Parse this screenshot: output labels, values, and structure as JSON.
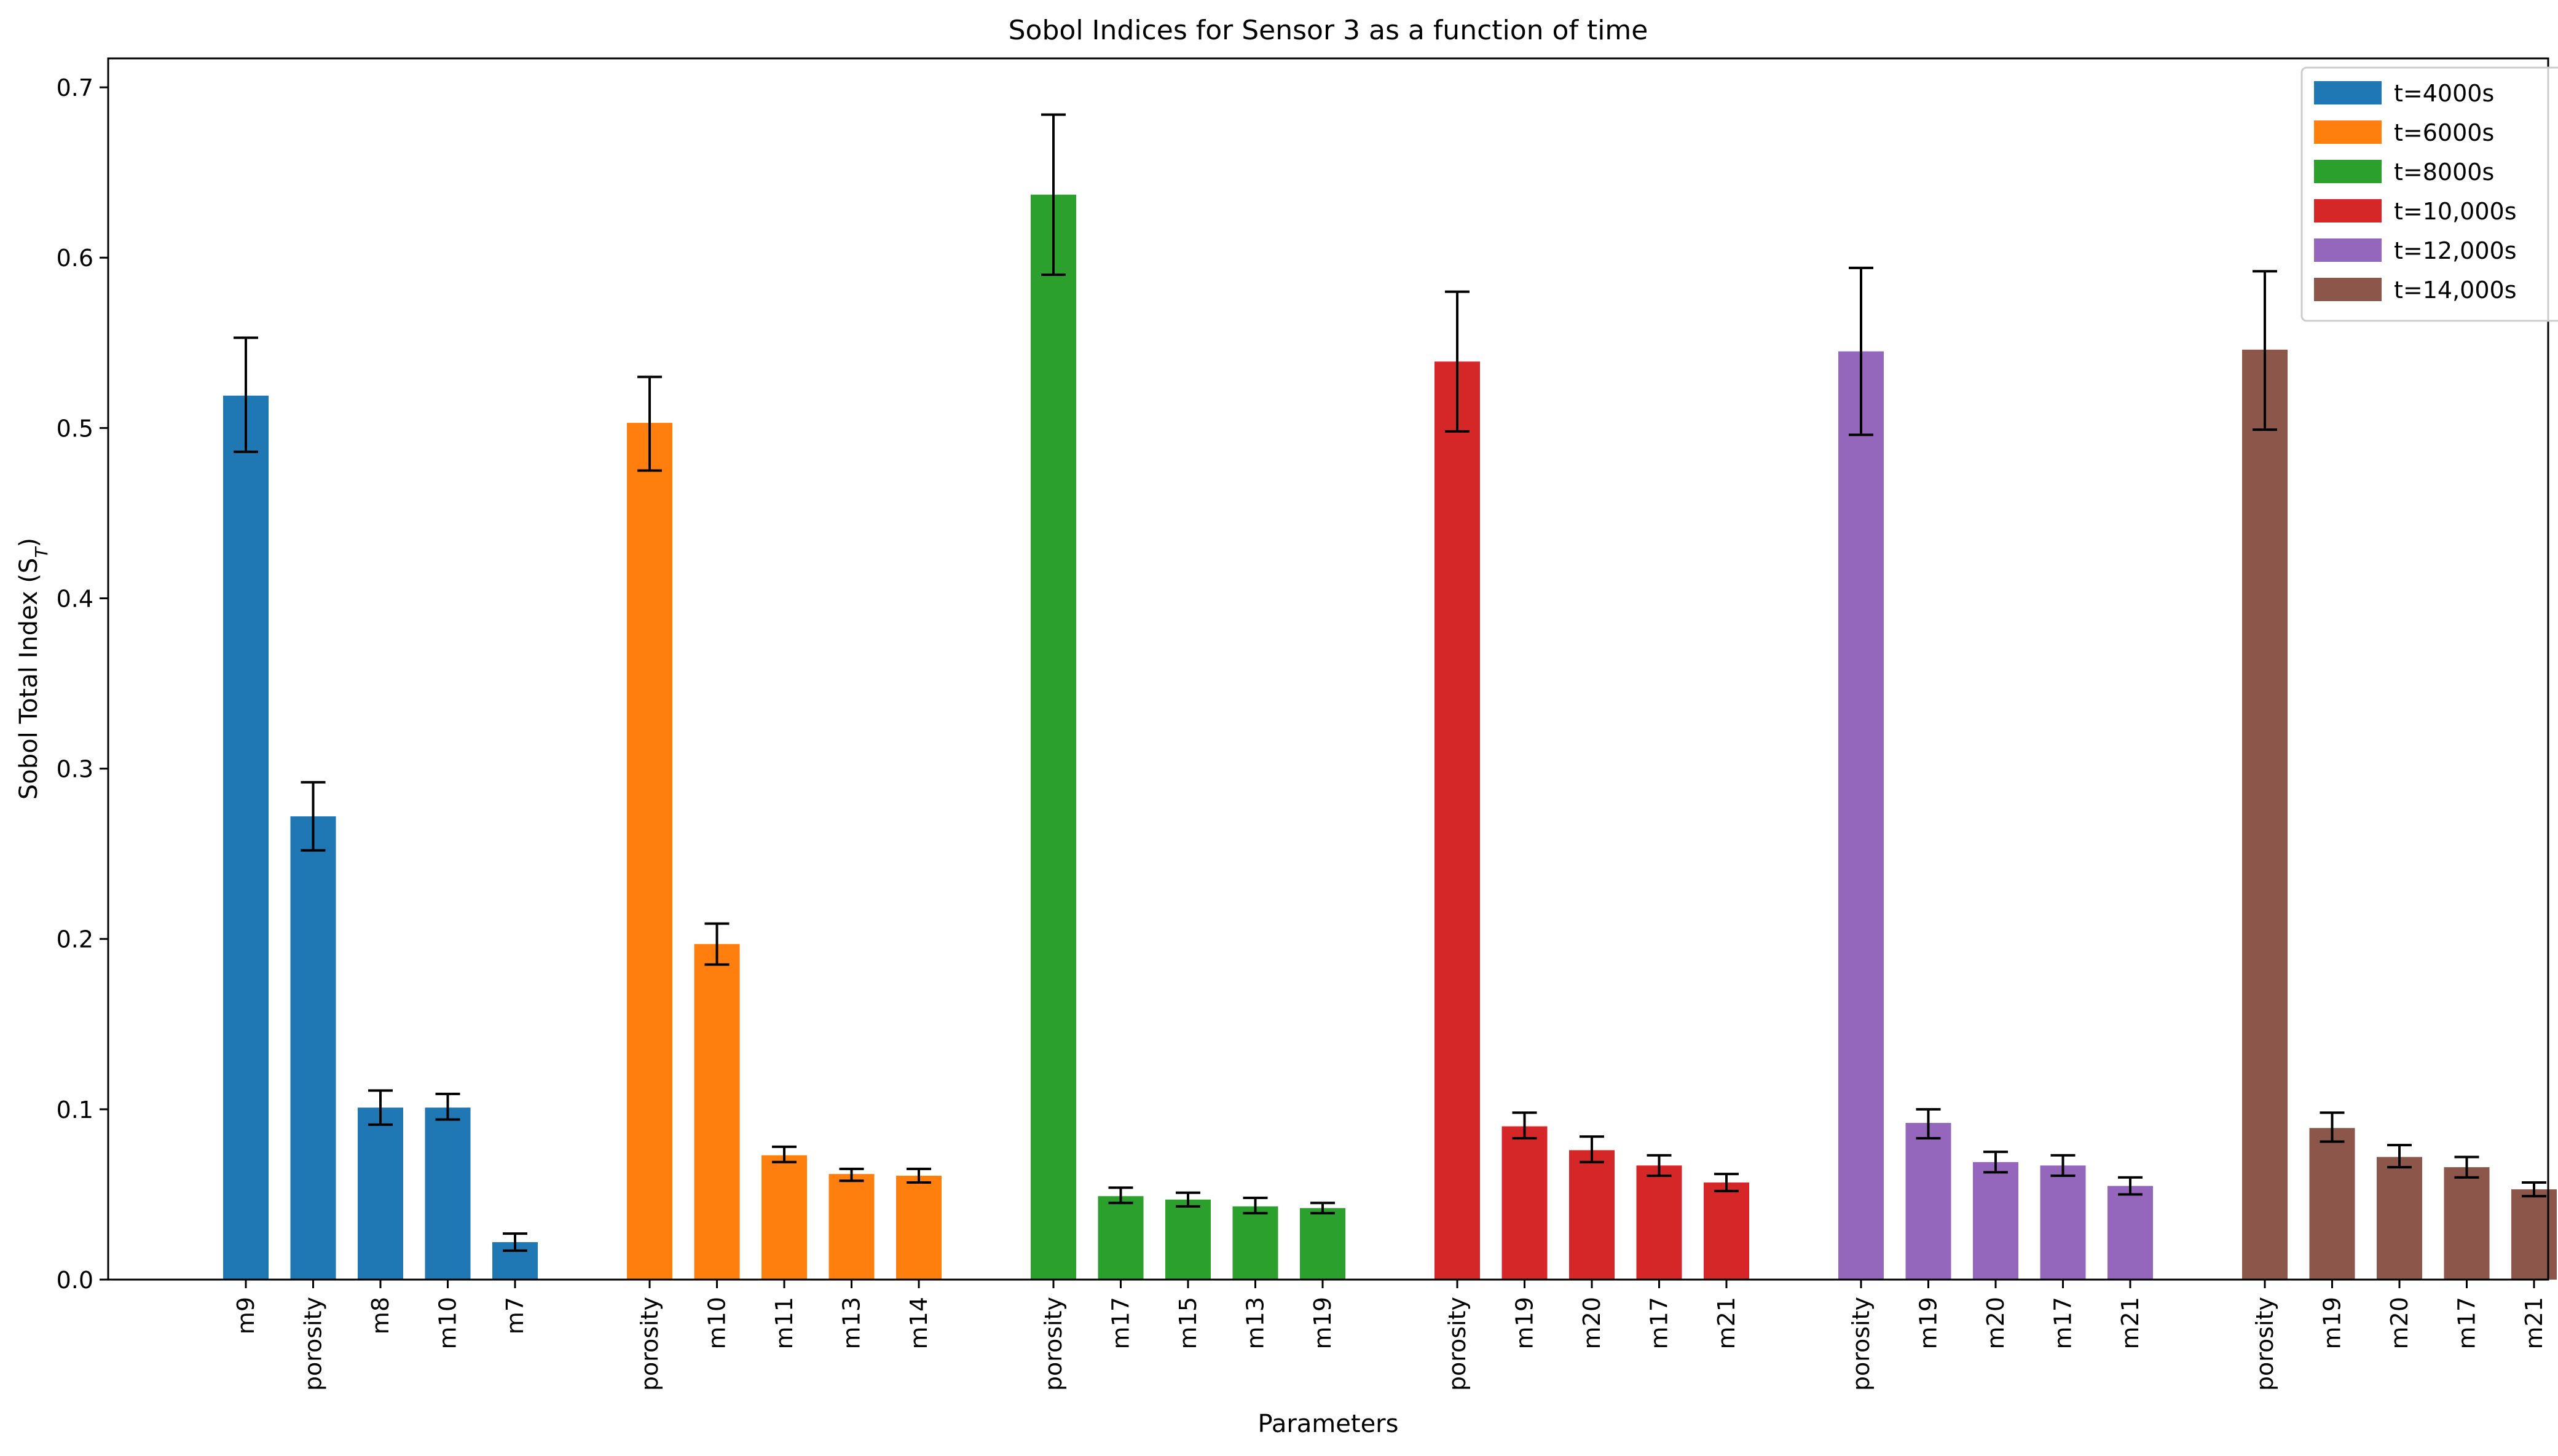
{
  "chart_data": {
    "type": "bar",
    "title": "Sobol Indices for Sensor 3 as a function of time",
    "xlabel": "Parameters",
    "ylabel": "Sobol Total Index (S",
    "ylabel_sub": "T",
    "ylabel_close": ")",
    "ylim": [
      0,
      0.717
    ],
    "yticks": [
      0.0,
      0.1,
      0.2,
      0.3,
      0.4,
      0.5,
      0.6,
      0.7
    ],
    "ytick_labels": [
      "0.0",
      "0.1",
      "0.2",
      "0.3",
      "0.4",
      "0.5",
      "0.6",
      "0.7"
    ],
    "grid": false,
    "legend_position": "top-right",
    "error_bars": true,
    "series": [
      {
        "name": "t=4000s",
        "color": "#1f77b4",
        "categories": [
          "m9",
          "porosity",
          "m8",
          "m10",
          "m7"
        ],
        "values": [
          0.519,
          0.272,
          0.101,
          0.101,
          0.022
        ],
        "err_low": [
          0.486,
          0.252,
          0.091,
          0.094,
          0.017
        ],
        "err_high": [
          0.553,
          0.292,
          0.111,
          0.109,
          0.027
        ]
      },
      {
        "name": "t=6000s",
        "color": "#ff7f0e",
        "categories": [
          "porosity",
          "m10",
          "m11",
          "m13",
          "m14"
        ],
        "values": [
          0.503,
          0.197,
          0.073,
          0.062,
          0.061
        ],
        "err_low": [
          0.475,
          0.185,
          0.069,
          0.058,
          0.057
        ],
        "err_high": [
          0.53,
          0.209,
          0.078,
          0.065,
          0.065
        ]
      },
      {
        "name": "t=8000s",
        "color": "#2ca02c",
        "categories": [
          "porosity",
          "m17",
          "m15",
          "m13",
          "m19"
        ],
        "values": [
          0.637,
          0.049,
          0.047,
          0.043,
          0.042
        ],
        "err_low": [
          0.59,
          0.045,
          0.043,
          0.039,
          0.039
        ],
        "err_high": [
          0.684,
          0.054,
          0.051,
          0.048,
          0.045
        ]
      },
      {
        "name": "t=10,000s",
        "color": "#d62728",
        "categories": [
          "porosity",
          "m19",
          "m20",
          "m17",
          "m21"
        ],
        "values": [
          0.539,
          0.09,
          0.076,
          0.067,
          0.057
        ],
        "err_low": [
          0.498,
          0.083,
          0.069,
          0.061,
          0.052
        ],
        "err_high": [
          0.58,
          0.098,
          0.084,
          0.073,
          0.062
        ]
      },
      {
        "name": "t=12,000s",
        "color": "#9467bd",
        "categories": [
          "porosity",
          "m19",
          "m20",
          "m17",
          "m21"
        ],
        "values": [
          0.545,
          0.092,
          0.069,
          0.067,
          0.055
        ],
        "err_low": [
          0.496,
          0.083,
          0.063,
          0.061,
          0.05
        ],
        "err_high": [
          0.594,
          0.1,
          0.075,
          0.073,
          0.06
        ]
      },
      {
        "name": "t=14,000s",
        "color": "#8c564b",
        "categories": [
          "porosity",
          "m19",
          "m20",
          "m17",
          "m21"
        ],
        "values": [
          0.546,
          0.089,
          0.072,
          0.066,
          0.053
        ],
        "err_low": [
          0.499,
          0.081,
          0.066,
          0.06,
          0.049
        ],
        "err_high": [
          0.592,
          0.098,
          0.079,
          0.072,
          0.057
        ]
      }
    ]
  }
}
